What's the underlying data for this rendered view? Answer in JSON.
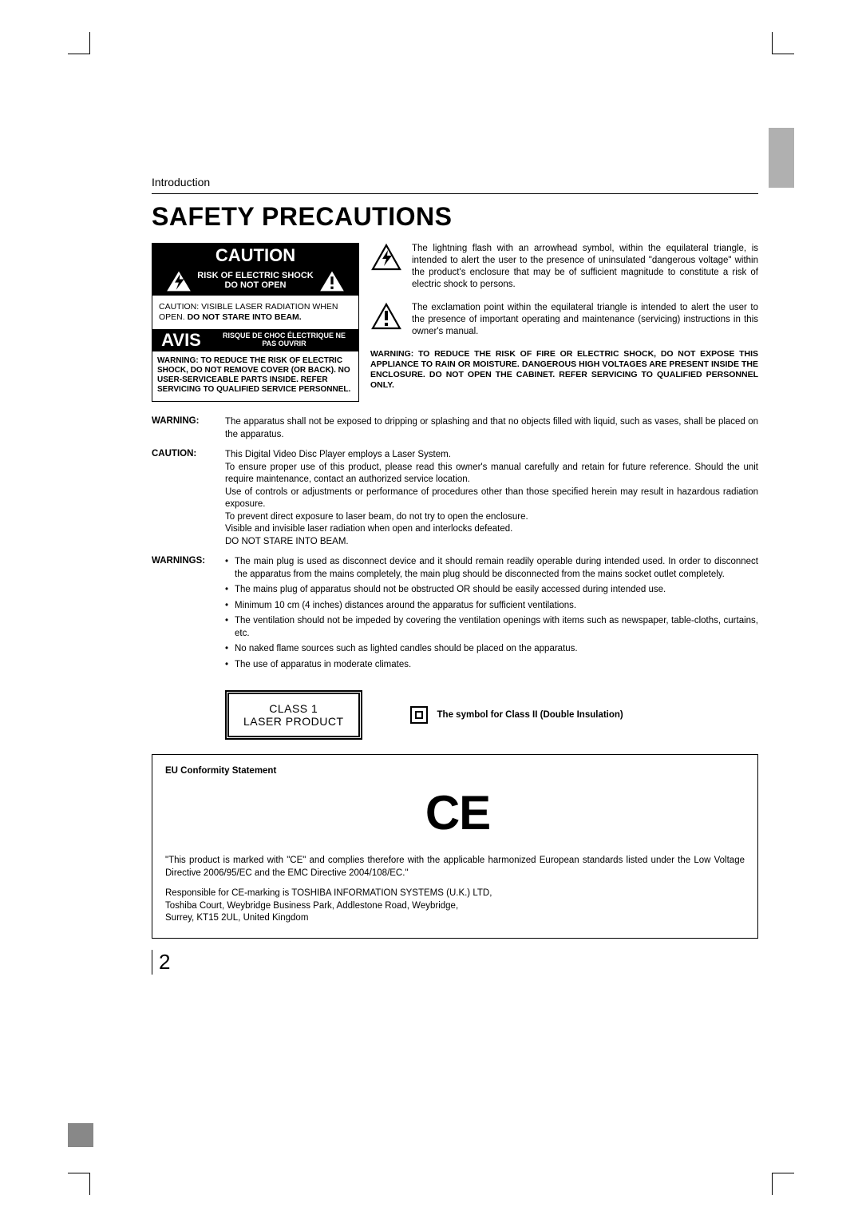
{
  "page": {
    "section_label": "Introduction",
    "title": "SAFETY PRECAUTIONS",
    "page_number": "2"
  },
  "caution_box": {
    "caution": "CAUTION",
    "risk_line1": "RISK OF ELECTRIC SHOCK",
    "risk_line2": "DO NOT OPEN",
    "laser_note_pre": "CAUTION: VISIBLE LASER RADIATION WHEN OPEN. ",
    "laser_note_bold": "DO NOT STARE INTO BEAM.",
    "avis": "AVIS",
    "avis_text": "RISQUE DE CHOC ÉLECTRIQUE  NE PAS OUVRIR",
    "shock_warning": "WARNING: TO REDUCE THE RISK OF ELECTRIC SHOCK, DO NOT REMOVE COVER (OR BACK). NO USER-SERVICEABLE PARTS INSIDE. REFER SERVICING TO QUALIFIED SERVICE PERSONNEL."
  },
  "icons": {
    "bolt_desc": "The lightning flash with an arrowhead symbol, within the equilateral triangle, is intended to alert the user to the presence of uninsulated \"dangerous voltage\" within the product's enclosure that may be of sufficient magnitude to constitute a risk of electric shock to persons.",
    "bang_desc": "The exclamation point within the equilateral triangle is intended to alert the user to the presence of important operating and maintenance (servicing) instructions in this owner's manual.",
    "fire_warning": "WARNING: TO REDUCE THE RISK OF FIRE OR ELECTRIC SHOCK, DO NOT EXPOSE THIS APPLIANCE TO RAIN OR MOISTURE. DANGEROUS HIGH VOLTAGES ARE PRESENT INSIDE THE ENCLOSURE. DO NOT OPEN THE CABINET. REFER SERVICING TO QUALIFIED PERSONNEL ONLY."
  },
  "body": {
    "warning_label": "WARNING:",
    "warning_text": "The apparatus shall not be exposed to dripping or splashing and that no objects filled with liquid, such as vases, shall be placed on the apparatus.",
    "caution_label": "CAUTION:",
    "caution_text": "This Digital Video Disc Player employs a Laser System.\nTo ensure proper use of this product, please read this owner's manual carefully and retain for future reference. Should the unit require maintenance, contact an authorized service location.\nUse of controls or adjustments or performance of procedures other than those specified herein may result in hazardous radiation exposure.\nTo prevent direct exposure to laser beam, do not try to open the enclosure.\nVisible and invisible laser radiation when open and interlocks defeated.\nDO NOT STARE INTO BEAM.",
    "warnings_label": "WARNINGS:",
    "warnings_items": [
      "The main plug is used as disconnect device and it should remain readily operable during intended used. In order to disconnect the apparatus from the mains completely, the main plug should be disconnected from the mains socket outlet completely.",
      "The mains plug of apparatus should not be obstructed OR should be easily accessed during intended use.",
      "Minimum 10 cm (4 inches) distances around the apparatus for sufficient ventilations.",
      "The ventilation should not be impeded by covering the ventilation openings with items such as newspaper, table-cloths, curtains, etc.",
      "No naked flame sources such as lighted candles should be placed on the apparatus.",
      "The use of apparatus in moderate climates."
    ]
  },
  "badges": {
    "class1_l1": "CLASS 1",
    "class1_l2": "LASER PRODUCT",
    "double_insulation": "The symbol for Class ΙΙ (Double Insulation)"
  },
  "eu": {
    "title": "EU Conformity Statement",
    "body": "\"This product is marked with \"CE\" and complies therefore with the applicable harmonized European standards listed under the Low Voltage Directive 2006/95/EC and the EMC Directive 2004/108/EC.\"",
    "addr1": "Responsible for CE-marking is TOSHIBA INFORMATION SYSTEMS (U.K.) LTD,",
    "addr2": "Toshiba Court, Weybridge Business Park, Addlestone Road, Weybridge,",
    "addr3": "Surrey, KT15 2UL, United Kingdom"
  },
  "colors": {
    "black": "#000000",
    "white": "#ffffff",
    "gray_tab": "#b0b0b0"
  }
}
